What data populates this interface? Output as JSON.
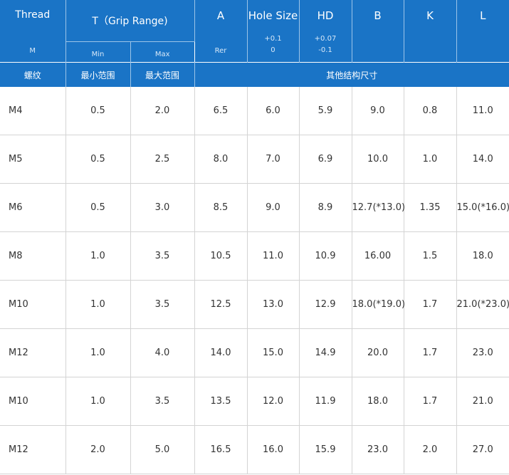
{
  "header": {
    "thread": "Thread",
    "thread_sub": "M",
    "t_grip": "T（Grip Range)",
    "t_min": "Min",
    "t_max": "Max",
    "a": "A",
    "a_sub": "Rer",
    "hole_size": "Hole Size",
    "hole_tol_plus": "+0.1",
    "hole_tol_minus": "0",
    "hd": "HD",
    "hd_tol_plus": "+0.07",
    "hd_tol_minus": "-0.1",
    "b": "B",
    "k": "K",
    "l": "L"
  },
  "cn_header": {
    "thread": "螺纹",
    "min": "最小范围",
    "max": "最大范围",
    "other": "其他结构尺寸"
  },
  "rows": [
    [
      "M4",
      "0.5",
      "2.0",
      "6.5",
      "6.0",
      "5.9",
      "9.0",
      "0.8",
      "11.0"
    ],
    [
      "M5",
      "0.5",
      "2.5",
      "8.0",
      "7.0",
      "6.9",
      "10.0",
      "1.0",
      "14.0"
    ],
    [
      "M6",
      "0.5",
      "3.0",
      "8.5",
      "9.0",
      "8.9",
      "12.7(*13.0)",
      "1.35",
      "15.0(*16.0)"
    ],
    [
      "M8",
      "1.0",
      "3.5",
      "10.5",
      "11.0",
      "10.9",
      "16.00",
      "1.5",
      "18.0"
    ],
    [
      "M10",
      "1.0",
      "3.5",
      "12.5",
      "13.0",
      "12.9",
      "18.0(*19.0)",
      "1.7",
      "21.0(*23.0)"
    ],
    [
      "M12",
      "1.0",
      "4.0",
      "14.0",
      "15.0",
      "14.9",
      "20.0",
      "1.7",
      "23.0"
    ],
    [
      "M10",
      "1.0",
      "3.5",
      "13.5",
      "12.0",
      "11.9",
      "18.0",
      "1.7",
      "21.0"
    ],
    [
      "M12",
      "2.0",
      "5.0",
      "16.5",
      "16.0",
      "15.9",
      "23.0",
      "2.0",
      "27.0"
    ]
  ]
}
